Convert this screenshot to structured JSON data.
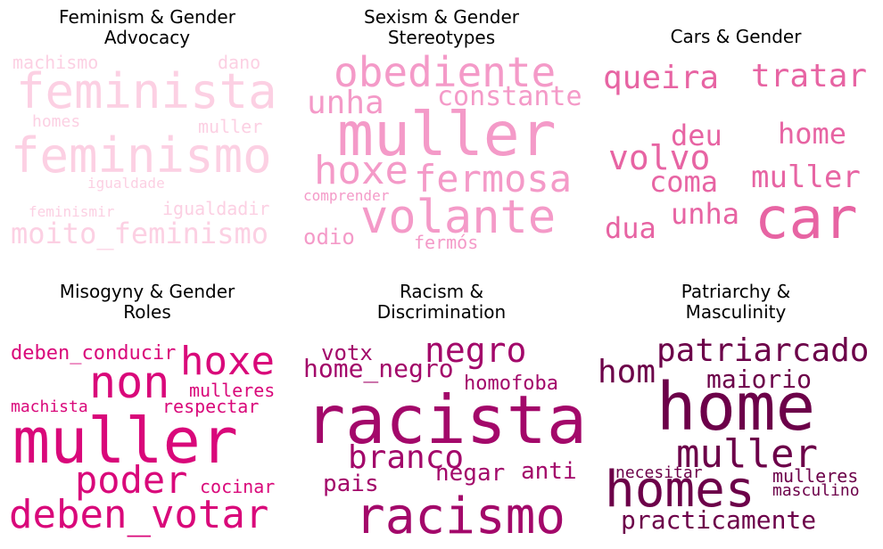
{
  "chart_data": [
    {
      "type": "wordcloud",
      "title": [
        "Feminism & Gender",
        "Advocacy"
      ],
      "color": "#fcd0e3",
      "words": [
        {
          "text": "feminista",
          "weight": 1.0
        },
        {
          "text": "feminismo",
          "weight": 1.0
        },
        {
          "text": "moito_feminismo",
          "weight": 0.72
        },
        {
          "text": "machismo",
          "weight": 0.44
        },
        {
          "text": "dano",
          "weight": 0.44
        },
        {
          "text": "muller",
          "weight": 0.44
        },
        {
          "text": "homes",
          "weight": 0.4
        },
        {
          "text": "igualdadir",
          "weight": 0.44
        },
        {
          "text": "igualdade",
          "weight": 0.38
        },
        {
          "text": "feminismir",
          "weight": 0.38
        }
      ]
    },
    {
      "type": "wordcloud",
      "title": [
        "Sexism & Gender",
        "Stereotypes"
      ],
      "color": "#f49ac8",
      "words": [
        {
          "text": "muller",
          "weight": 1.0
        },
        {
          "text": "obediente",
          "weight": 0.72
        },
        {
          "text": "volante",
          "weight": 0.78
        },
        {
          "text": "hoxe",
          "weight": 0.68
        },
        {
          "text": "fermosa",
          "weight": 0.66
        },
        {
          "text": "unha",
          "weight": 0.56
        },
        {
          "text": "constante",
          "weight": 0.5
        },
        {
          "text": "odio",
          "weight": 0.4
        },
        {
          "text": "fermós",
          "weight": 0.38
        },
        {
          "text": "comprender",
          "weight": 0.3
        }
      ]
    },
    {
      "type": "wordcloud",
      "title": [
        "Cars & Gender"
      ],
      "color": "#e764a3",
      "words": [
        {
          "text": "car",
          "weight": 1.0
        },
        {
          "text": "queira",
          "weight": 0.58
        },
        {
          "text": "tratar",
          "weight": 0.58
        },
        {
          "text": "volvo",
          "weight": 0.58
        },
        {
          "text": "muller",
          "weight": 0.52
        },
        {
          "text": "home",
          "weight": 0.5
        },
        {
          "text": "deu",
          "weight": 0.5
        },
        {
          "text": "coma",
          "weight": 0.5
        },
        {
          "text": "unha",
          "weight": 0.5
        },
        {
          "text": "dua",
          "weight": 0.5
        }
      ]
    },
    {
      "type": "wordcloud",
      "title": [
        "Misogyny & Gender",
        "Roles"
      ],
      "color": "#d9087a",
      "words": [
        {
          "text": "muller",
          "weight": 1.0
        },
        {
          "text": "non",
          "weight": 0.72
        },
        {
          "text": "deben_votar",
          "weight": 0.68
        },
        {
          "text": "hoxe",
          "weight": 0.62
        },
        {
          "text": "poder",
          "weight": 0.6
        },
        {
          "text": "deben_conducir",
          "weight": 0.38
        },
        {
          "text": "mulleres",
          "weight": 0.36
        },
        {
          "text": "respectar",
          "weight": 0.36
        },
        {
          "text": "machista",
          "weight": 0.34
        },
        {
          "text": "cocinar",
          "weight": 0.34
        }
      ]
    },
    {
      "type": "wordcloud",
      "title": [
        "Racism &",
        "Discrimination"
      ],
      "color": "#a3086a",
      "words": [
        {
          "text": "racista",
          "weight": 1.0
        },
        {
          "text": "racismo",
          "weight": 0.78
        },
        {
          "text": "negro",
          "weight": 0.56
        },
        {
          "text": "branco",
          "weight": 0.52
        },
        {
          "text": "home_negro",
          "weight": 0.44
        },
        {
          "text": "pais",
          "weight": 0.4
        },
        {
          "text": "anti",
          "weight": 0.38
        },
        {
          "text": "negar",
          "weight": 0.38
        },
        {
          "text": "votx",
          "weight": 0.36
        },
        {
          "text": "homofoba",
          "weight": 0.34
        }
      ]
    },
    {
      "type": "wordcloud",
      "title": [
        "Patriarchy &",
        "Masculinity"
      ],
      "color": "#6c0049",
      "words": [
        {
          "text": "home",
          "weight": 1.0
        },
        {
          "text": "homes",
          "weight": 0.82
        },
        {
          "text": "muller",
          "weight": 0.62
        },
        {
          "text": "patriarcado",
          "weight": 0.56
        },
        {
          "text": "hom",
          "weight": 0.52
        },
        {
          "text": "maiorio",
          "weight": 0.44
        },
        {
          "text": "practicamente",
          "weight": 0.44
        },
        {
          "text": "mulleres",
          "weight": 0.36
        },
        {
          "text": "masculino",
          "weight": 0.32
        },
        {
          "text": "necesitar",
          "weight": 0.3
        }
      ]
    }
  ]
}
